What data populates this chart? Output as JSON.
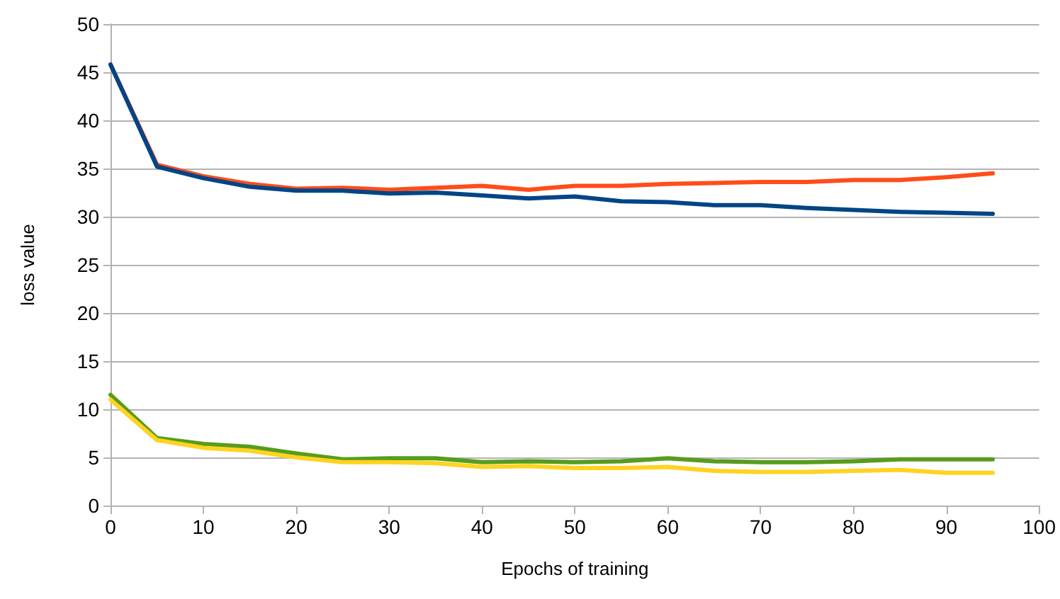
{
  "chart_data": {
    "type": "line",
    "xlabel": "Epochs of training",
    "ylabel": "loss value",
    "x": [
      0,
      5,
      10,
      15,
      20,
      25,
      30,
      35,
      40,
      45,
      50,
      55,
      60,
      65,
      70,
      75,
      80,
      85,
      90,
      95
    ],
    "series": [
      {
        "color": "#ff4d1a",
        "values": [
          45.8,
          35.4,
          34.2,
          33.4,
          32.9,
          33.0,
          32.8,
          33.0,
          33.2,
          32.8,
          33.2,
          33.2,
          33.4,
          33.5,
          33.6,
          33.6,
          33.8,
          33.8,
          34.1,
          34.5
        ]
      },
      {
        "color": "#004586",
        "values": [
          45.8,
          35.2,
          34.0,
          33.1,
          32.7,
          32.7,
          32.4,
          32.5,
          32.2,
          31.9,
          32.1,
          31.6,
          31.5,
          31.2,
          31.2,
          30.9,
          30.7,
          30.5,
          30.4,
          30.3
        ]
      },
      {
        "color": "#579d1c",
        "values": [
          11.5,
          7.0,
          6.4,
          6.1,
          5.4,
          4.8,
          4.9,
          4.9,
          4.5,
          4.6,
          4.5,
          4.6,
          4.9,
          4.6,
          4.5,
          4.5,
          4.6,
          4.8,
          4.8,
          4.8
        ]
      },
      {
        "color": "#ffd320",
        "values": [
          11.0,
          6.8,
          6.0,
          5.7,
          5.0,
          4.5,
          4.5,
          4.4,
          4.0,
          4.1,
          3.9,
          3.9,
          4.0,
          3.6,
          3.5,
          3.5,
          3.6,
          3.7,
          3.4,
          3.4
        ]
      }
    ],
    "xlim": [
      0,
      100
    ],
    "xticks": [
      0,
      10,
      20,
      30,
      40,
      50,
      60,
      70,
      80,
      90,
      100
    ],
    "ylim": [
      0,
      50
    ],
    "yticks": [
      0,
      5,
      10,
      15,
      20,
      25,
      30,
      35,
      40,
      45,
      50
    ],
    "grid": "y",
    "marker": "none",
    "line_style": "solid"
  }
}
